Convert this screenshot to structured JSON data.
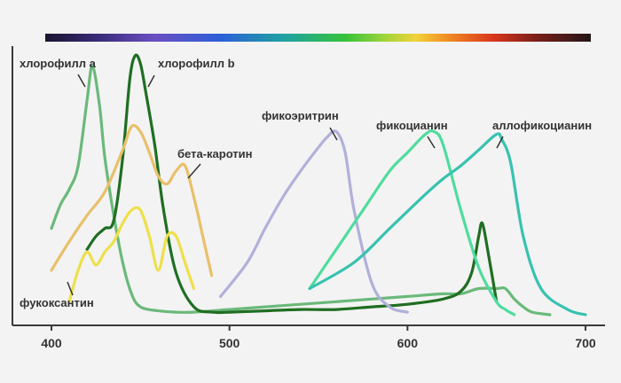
{
  "chart_data": {
    "type": "line",
    "xlabel": "",
    "ylabel": "",
    "xlim": [
      400,
      700
    ],
    "ylim": [
      0,
      1
    ],
    "x_ticks": [
      "400",
      "500",
      "600",
      "700"
    ],
    "spectrum_bar": true,
    "series": [
      {
        "name": "хлорофилл a",
        "color": "#6ab97a",
        "x": [
          400,
          405,
          410,
          415,
          420,
          423,
          427,
          430,
          435,
          440,
          445,
          450,
          460,
          470,
          480,
          500,
          520,
          540,
          560,
          580,
          600,
          620,
          630,
          640,
          650,
          655,
          660,
          665,
          670,
          680
        ],
        "y": [
          0.33,
          0.42,
          0.48,
          0.57,
          0.82,
          0.95,
          0.8,
          0.6,
          0.38,
          0.2,
          0.08,
          0.03,
          0.015,
          0.01,
          0.01,
          0.02,
          0.03,
          0.04,
          0.05,
          0.06,
          0.07,
          0.08,
          0.08,
          0.1,
          0.1,
          0.1,
          0.06,
          0.03,
          0.01,
          0.0
        ]
      },
      {
        "name": "хлорофилл b",
        "color": "#1f6e22",
        "x": [
          420,
          425,
          430,
          435,
          440,
          444,
          447,
          450,
          453,
          458,
          463,
          470,
          480,
          490,
          500,
          520,
          540,
          560,
          580,
          600,
          620,
          630,
          636,
          640,
          642,
          645,
          650
        ],
        "y": [
          0.25,
          0.3,
          0.33,
          0.36,
          0.6,
          0.9,
          0.99,
          0.96,
          0.85,
          0.65,
          0.4,
          0.16,
          0.03,
          0.01,
          0.01,
          0.015,
          0.02,
          0.02,
          0.03,
          0.04,
          0.06,
          0.09,
          0.16,
          0.3,
          0.35,
          0.25,
          0.05
        ]
      },
      {
        "name": "бета-каротин",
        "color": "#e8c06a",
        "x": [
          400,
          410,
          420,
          430,
          440,
          445,
          450,
          455,
          460,
          465,
          470,
          475,
          480,
          485,
          490
        ],
        "y": [
          0.17,
          0.28,
          0.38,
          0.47,
          0.63,
          0.72,
          0.7,
          0.62,
          0.53,
          0.5,
          0.55,
          0.57,
          0.45,
          0.3,
          0.15
        ]
      },
      {
        "name": "фукоксантин",
        "color": "#ede04a",
        "x": [
          410,
          415,
          420,
          425,
          430,
          435,
          440,
          445,
          450,
          455,
          460,
          465,
          470,
          475,
          480
        ],
        "y": [
          0.05,
          0.17,
          0.24,
          0.19,
          0.24,
          0.28,
          0.35,
          0.4,
          0.4,
          0.3,
          0.17,
          0.3,
          0.3,
          0.2,
          0.1
        ]
      },
      {
        "name": "фикоэритрин",
        "color": "#b1b0da",
        "x": [
          495,
          510,
          520,
          530,
          540,
          550,
          555,
          560,
          565,
          570,
          580,
          590,
          600
        ],
        "y": [
          0.07,
          0.2,
          0.33,
          0.45,
          0.55,
          0.64,
          0.68,
          0.7,
          0.62,
          0.4,
          0.12,
          0.03,
          0.01
        ]
      },
      {
        "name": "фикоцианин",
        "color": "#4fdc9e",
        "x": [
          545,
          560,
          575,
          590,
          600,
          610,
          615,
          620,
          630,
          640,
          650,
          655,
          660
        ],
        "y": [
          0.1,
          0.25,
          0.4,
          0.55,
          0.62,
          0.69,
          0.7,
          0.65,
          0.4,
          0.18,
          0.05,
          0.02,
          0.0
        ]
      },
      {
        "name": "аллофикоцианин",
        "color": "#38c2b0",
        "x": [
          545,
          570,
          590,
          610,
          620,
          630,
          640,
          650,
          653,
          658,
          665,
          675,
          690,
          700
        ],
        "y": [
          0.1,
          0.2,
          0.33,
          0.46,
          0.52,
          0.57,
          0.63,
          0.69,
          0.67,
          0.58,
          0.3,
          0.1,
          0.02,
          0.0
        ]
      }
    ],
    "annotations": [
      "хлорофилл a",
      "хлорофилл b",
      "бета-каротин",
      "фикоэритрин",
      "фикоцианин",
      "аллофикоцианин",
      "фукоксантин"
    ]
  }
}
